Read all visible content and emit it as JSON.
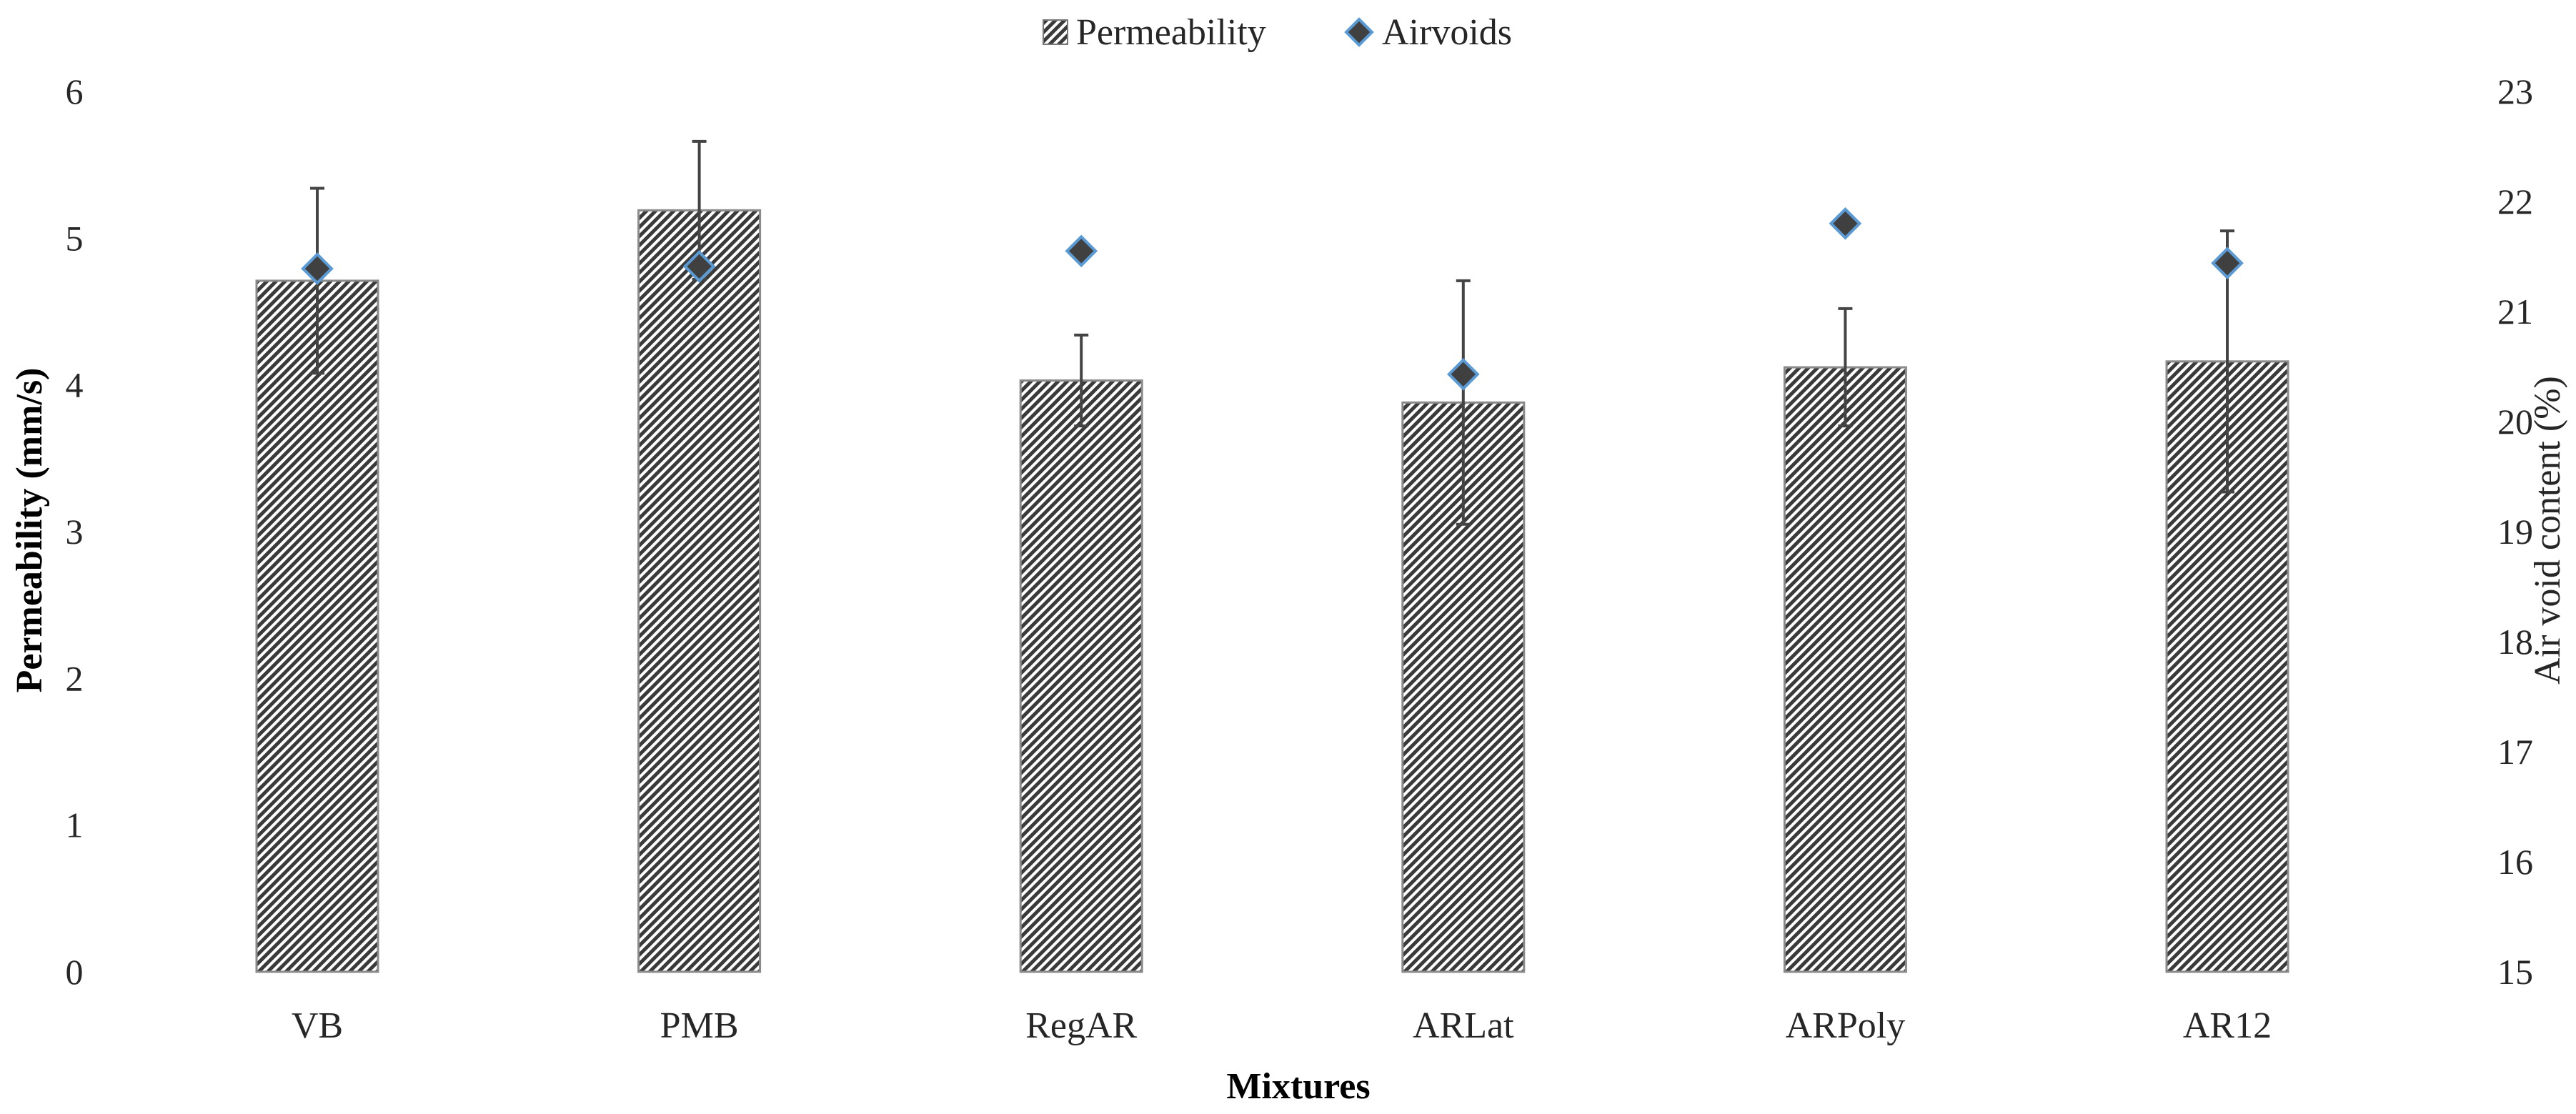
{
  "chart_data": {
    "type": "bar",
    "categories": [
      "VB",
      "PMB",
      "RegAR",
      "ARLat",
      "ARPoly",
      "AR12"
    ],
    "xlabel": "Mixtures",
    "ylabel": "Permeability (mm/s)",
    "y2label": "Air void content (%)",
    "ylim": [
      0,
      6
    ],
    "y2lim": [
      15,
      23
    ],
    "yticks": [
      0,
      1,
      2,
      3,
      4,
      5,
      6
    ],
    "y2ticks": [
      15,
      16,
      17,
      18,
      19,
      20,
      21,
      22,
      23
    ],
    "grid": false,
    "legend_position": "top",
    "series": [
      {
        "name": "Permeability",
        "type": "bar",
        "axis": "left",
        "values": [
          4.71,
          5.19,
          4.03,
          3.88,
          4.12,
          4.16
        ],
        "error": [
          0.63,
          0.47,
          0.31,
          0.83,
          0.4,
          0.89
        ],
        "pattern": "diagonal-hatch",
        "color": "#3a3a3a"
      },
      {
        "name": "Airvoids",
        "type": "scatter",
        "axis": "right",
        "marker": "diamond",
        "values": [
          21.39,
          21.41,
          21.55,
          20.43,
          21.8,
          21.44
        ],
        "color": "#404040",
        "edge_color": "#5b9bd5"
      }
    ]
  }
}
